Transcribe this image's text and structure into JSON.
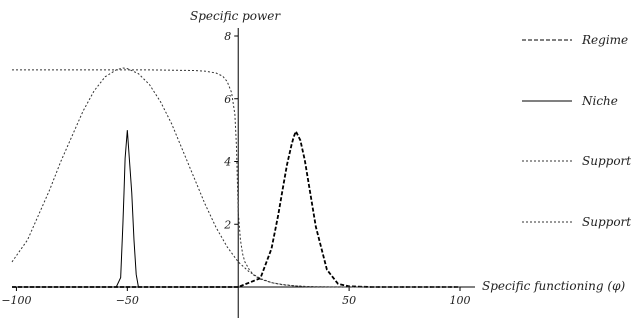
{
  "chart_data": {
    "type": "line",
    "xlabel": "Specific functioning (φ)",
    "ylabel": "Specific power",
    "xlim": [
      -102,
      100
    ],
    "ylim": [
      0,
      8
    ],
    "x_ticks": [
      -100,
      -50,
      50,
      100
    ],
    "y_ticks": [
      2,
      4,
      6,
      8
    ],
    "grid": false,
    "legend_placement": "right",
    "series": [
      {
        "name": "Regime",
        "style": "dashed",
        "color": "#000000",
        "x": [
          -102,
          0,
          10,
          15,
          18,
          20,
          22,
          24,
          25,
          26,
          28,
          30,
          32,
          35,
          40,
          45,
          50,
          60,
          100
        ],
        "values": [
          0,
          0,
          0.28,
          1.22,
          2.28,
          3.1,
          3.9,
          4.52,
          4.78,
          4.96,
          4.68,
          4.05,
          3.2,
          1.92,
          0.55,
          0.1,
          0.02,
          0,
          0
        ]
      },
      {
        "name": "Niche",
        "style": "solid",
        "color": "#000000",
        "x": [
          -102,
          -55,
          -53,
          -52,
          -51.5,
          -51,
          -50,
          -49,
          -48,
          -47,
          -46,
          -45,
          100
        ],
        "values": [
          0,
          0,
          0.3,
          2.0,
          3.0,
          4.1,
          5.0,
          4.0,
          3.0,
          1.5,
          0.4,
          0,
          0
        ]
      },
      {
        "name": "Support",
        "style": "dotted",
        "color": "#333333",
        "x": [
          -102,
          -95,
          -90,
          -85,
          -80,
          -75,
          -70,
          -65,
          -60,
          -55,
          -52,
          -50,
          -45,
          -40,
          -35,
          -30,
          -25,
          -20,
          -15,
          -10,
          -5,
          0,
          5,
          10,
          15,
          20,
          30,
          40,
          50,
          100
        ],
        "values": [
          0.8,
          1.5,
          2.3,
          3.1,
          4.0,
          4.8,
          5.6,
          6.25,
          6.7,
          6.92,
          6.98,
          6.96,
          6.8,
          6.45,
          5.9,
          5.2,
          4.35,
          3.5,
          2.65,
          1.9,
          1.28,
          0.8,
          0.48,
          0.27,
          0.14,
          0.07,
          0.01,
          0,
          0,
          0
        ]
      },
      {
        "name": "Support",
        "style": "dotted",
        "color": "#333333",
        "x": [
          -102,
          -80,
          -60,
          -40,
          -30,
          -20,
          -15,
          -10,
          -7,
          -5,
          -3,
          -1.5,
          -0.8,
          0,
          1,
          2,
          3,
          5,
          7,
          10,
          15,
          20,
          25,
          30,
          35,
          50,
          100
        ],
        "values": [
          6.92,
          6.92,
          6.92,
          6.92,
          6.91,
          6.9,
          6.88,
          6.82,
          6.72,
          6.55,
          6.2,
          5.5,
          4.5,
          2.4,
          1.5,
          1.05,
          0.8,
          0.55,
          0.38,
          0.25,
          0.14,
          0.08,
          0.04,
          0.02,
          0.01,
          0,
          0
        ]
      }
    ]
  }
}
